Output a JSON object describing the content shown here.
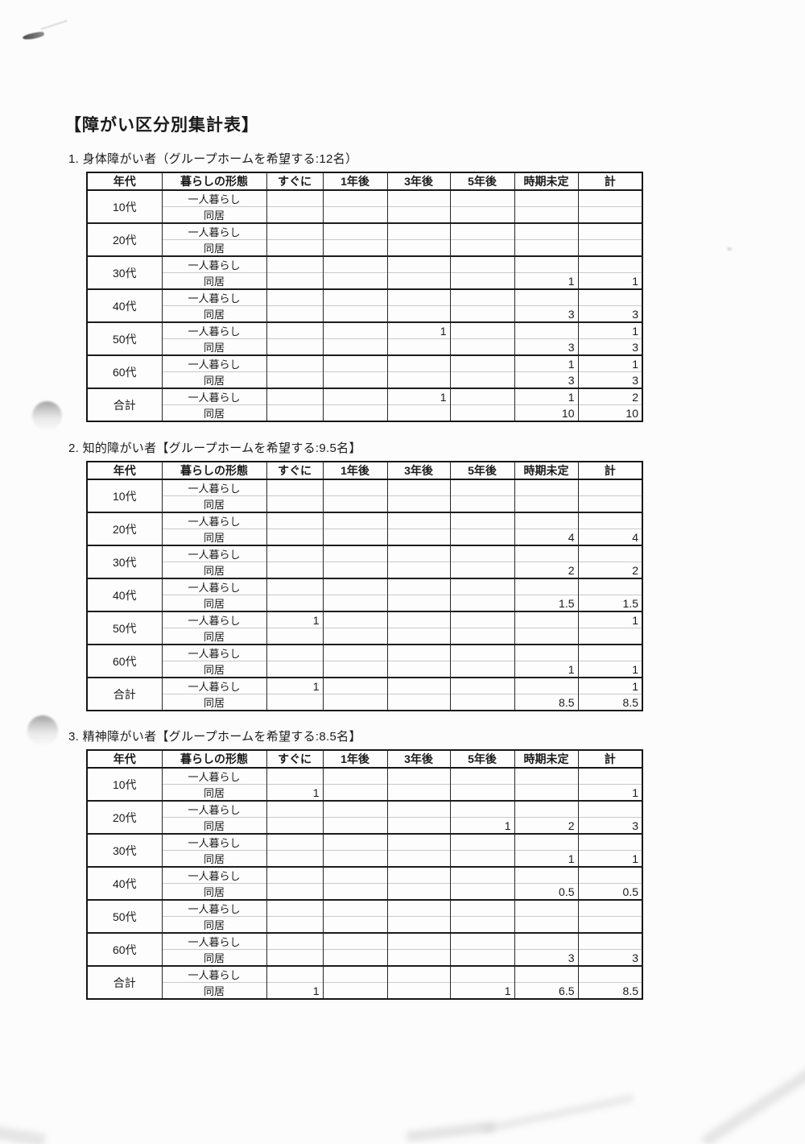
{
  "document_title": "【障がい区分別集計表】",
  "table_headers": [
    "年代",
    "暮らしの形態",
    "すぐに",
    "1年後",
    "3年後",
    "5年後",
    "時期未定",
    "計"
  ],
  "living_labels": [
    "一人暮らし",
    "同居"
  ],
  "sections": [
    {
      "title": "1. 身体障がい者（グループホームを希望する:12名）",
      "rows": [
        {
          "age": "10代",
          "alone": [
            "",
            "",
            "",
            "",
            "",
            ""
          ],
          "together": [
            "",
            "",
            "",
            "",
            "",
            ""
          ]
        },
        {
          "age": "20代",
          "alone": [
            "",
            "",
            "",
            "",
            "",
            ""
          ],
          "together": [
            "",
            "",
            "",
            "",
            "",
            ""
          ]
        },
        {
          "age": "30代",
          "alone": [
            "",
            "",
            "",
            "",
            "",
            ""
          ],
          "together": [
            "",
            "",
            "",
            "",
            "1",
            "1"
          ]
        },
        {
          "age": "40代",
          "alone": [
            "",
            "",
            "",
            "",
            "",
            ""
          ],
          "together": [
            "",
            "",
            "",
            "",
            "3",
            "3"
          ]
        },
        {
          "age": "50代",
          "alone": [
            "",
            "",
            "1",
            "",
            "",
            "1"
          ],
          "together": [
            "",
            "",
            "",
            "",
            "3",
            "3"
          ]
        },
        {
          "age": "60代",
          "alone": [
            "",
            "",
            "",
            "",
            "1",
            "1"
          ],
          "together": [
            "",
            "",
            "",
            "",
            "3",
            "3"
          ]
        },
        {
          "age": "合計",
          "alone": [
            "",
            "",
            "1",
            "",
            "1",
            "2"
          ],
          "together": [
            "",
            "",
            "",
            "",
            "10",
            "10"
          ]
        }
      ]
    },
    {
      "title": "2. 知的障がい者【グループホームを希望する:9.5名】",
      "rows": [
        {
          "age": "10代",
          "alone": [
            "",
            "",
            "",
            "",
            "",
            ""
          ],
          "together": [
            "",
            "",
            "",
            "",
            "",
            ""
          ]
        },
        {
          "age": "20代",
          "alone": [
            "",
            "",
            "",
            "",
            "",
            ""
          ],
          "together": [
            "",
            "",
            "",
            "",
            "4",
            "4"
          ]
        },
        {
          "age": "30代",
          "alone": [
            "",
            "",
            "",
            "",
            "",
            ""
          ],
          "together": [
            "",
            "",
            "",
            "",
            "2",
            "2"
          ]
        },
        {
          "age": "40代",
          "alone": [
            "",
            "",
            "",
            "",
            "",
            ""
          ],
          "together": [
            "",
            "",
            "",
            "",
            "1.5",
            "1.5"
          ]
        },
        {
          "age": "50代",
          "alone": [
            "1",
            "",
            "",
            "",
            "",
            "1"
          ],
          "together": [
            "",
            "",
            "",
            "",
            "",
            ""
          ]
        },
        {
          "age": "60代",
          "alone": [
            "",
            "",
            "",
            "",
            "",
            ""
          ],
          "together": [
            "",
            "",
            "",
            "",
            "1",
            "1"
          ]
        },
        {
          "age": "合計",
          "alone": [
            "1",
            "",
            "",
            "",
            "",
            "1"
          ],
          "together": [
            "",
            "",
            "",
            "",
            "8.5",
            "8.5"
          ]
        }
      ]
    },
    {
      "title": "3. 精神障がい者【グループホームを希望する:8.5名】",
      "rows": [
        {
          "age": "10代",
          "alone": [
            "",
            "",
            "",
            "",
            "",
            ""
          ],
          "together": [
            "1",
            "",
            "",
            "",
            "",
            "1"
          ]
        },
        {
          "age": "20代",
          "alone": [
            "",
            "",
            "",
            "",
            "",
            ""
          ],
          "together": [
            "",
            "",
            "",
            "1",
            "2",
            "3"
          ]
        },
        {
          "age": "30代",
          "alone": [
            "",
            "",
            "",
            "",
            "",
            ""
          ],
          "together": [
            "",
            "",
            "",
            "",
            "1",
            "1"
          ]
        },
        {
          "age": "40代",
          "alone": [
            "",
            "",
            "",
            "",
            "",
            ""
          ],
          "together": [
            "",
            "",
            "",
            "",
            "0.5",
            "0.5"
          ]
        },
        {
          "age": "50代",
          "alone": [
            "",
            "",
            "",
            "",
            "",
            ""
          ],
          "together": [
            "",
            "",
            "",
            "",
            "",
            ""
          ]
        },
        {
          "age": "60代",
          "alone": [
            "",
            "",
            "",
            "",
            "",
            ""
          ],
          "together": [
            "",
            "",
            "",
            "",
            "3",
            "3"
          ]
        },
        {
          "age": "合計",
          "alone": [
            "",
            "",
            "",
            "",
            "",
            ""
          ],
          "together": [
            "1",
            "",
            "",
            "1",
            "6.5",
            "8.5"
          ]
        }
      ]
    }
  ],
  "colors": {
    "ink": "#1a1a1a",
    "table_border": "#161616",
    "light_rule": "#c9c9c9",
    "paper": "#fcfcfc"
  }
}
